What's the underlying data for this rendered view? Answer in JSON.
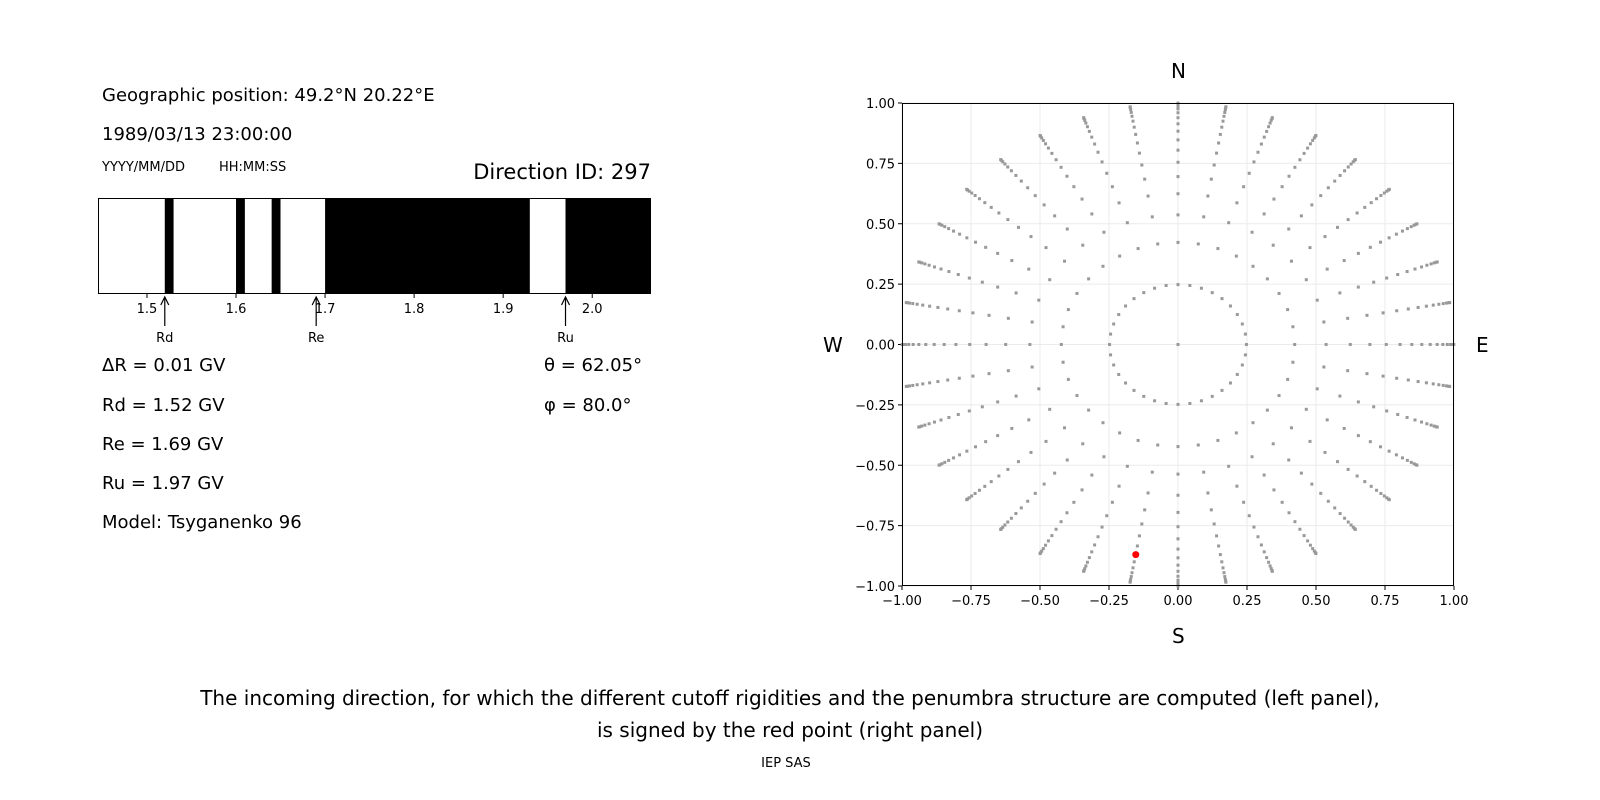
{
  "info": {
    "geo_position": "Geographic position: 49.2°N 20.22°E",
    "datetime": "1989/03/13 23:00:00",
    "date_format": "YYYY/MM/DD",
    "time_format": "HH:MM:SS",
    "direction_id": "Direction ID: 297",
    "delta_r": "ΔR = 0.01 GV",
    "rd": "Rd = 1.52 GV",
    "re": "Re = 1.69 GV",
    "ru": "Ru = 1.97 GV",
    "model": "Model: Tsyganenko 96",
    "theta": "θ = 62.05°",
    "phi": "φ = 80.0°"
  },
  "caption": {
    "line1": "The incoming direction, for which the different cutoff rigidities and the penumbra structure are computed (left panel),",
    "line2": "is signed by the red point (right panel)",
    "credit": "IEP SAS"
  },
  "chart_data": [
    {
      "type": "bar",
      "subtype": "penumbra",
      "xlim": [
        1.445,
        2.066
      ],
      "xticks": [
        1.5,
        1.6,
        1.7,
        1.8,
        1.9,
        2.0
      ],
      "xtick_labels": [
        "1.5",
        "1.6",
        "1.7",
        "1.8",
        "1.9",
        "2.0"
      ],
      "segments": [
        {
          "from": 1.445,
          "to": 1.52,
          "state": "allowed"
        },
        {
          "from": 1.52,
          "to": 1.53,
          "state": "forbidden"
        },
        {
          "from": 1.53,
          "to": 1.6,
          "state": "allowed"
        },
        {
          "from": 1.6,
          "to": 1.61,
          "state": "forbidden"
        },
        {
          "from": 1.61,
          "to": 1.64,
          "state": "allowed"
        },
        {
          "from": 1.64,
          "to": 1.65,
          "state": "forbidden"
        },
        {
          "from": 1.65,
          "to": 1.7,
          "state": "allowed"
        },
        {
          "from": 1.7,
          "to": 1.93,
          "state": "forbidden"
        },
        {
          "from": 1.93,
          "to": 1.97,
          "state": "allowed"
        },
        {
          "from": 1.97,
          "to": 2.066,
          "state": "forbidden"
        }
      ],
      "markers": [
        {
          "label": "Rd",
          "value": 1.52
        },
        {
          "label": "Re",
          "value": 1.69
        },
        {
          "label": "Ru",
          "value": 1.97
        }
      ],
      "colors": {
        "allowed": "#ffffff",
        "forbidden": "#000000"
      }
    },
    {
      "type": "scatter",
      "xlim": [
        -1,
        1
      ],
      "ylim": [
        -1,
        1
      ],
      "ticks": [
        -1,
        -0.75,
        -0.5,
        -0.25,
        0,
        0.25,
        0.5,
        0.75,
        1
      ],
      "tick_labels": [
        "−1.00",
        "−0.75",
        "−0.50",
        "−0.25",
        "0.00",
        "0.25",
        "0.50",
        "0.75",
        "1.00"
      ],
      "grid": true,
      "compass": {
        "north": "N",
        "south": "S",
        "west": "W",
        "east": "E"
      },
      "grid_directions": {
        "azimuth_step_deg": 10,
        "cos_zenith_start": 0.96875,
        "cos_zenith_step": 0.0625,
        "rings": 16,
        "include_center": true
      },
      "selected_point": {
        "x": -0.153,
        "y": -0.87
      },
      "colors": {
        "points": "#999999",
        "selected": "#ff0000",
        "grid": "#ebebeb"
      }
    }
  ]
}
